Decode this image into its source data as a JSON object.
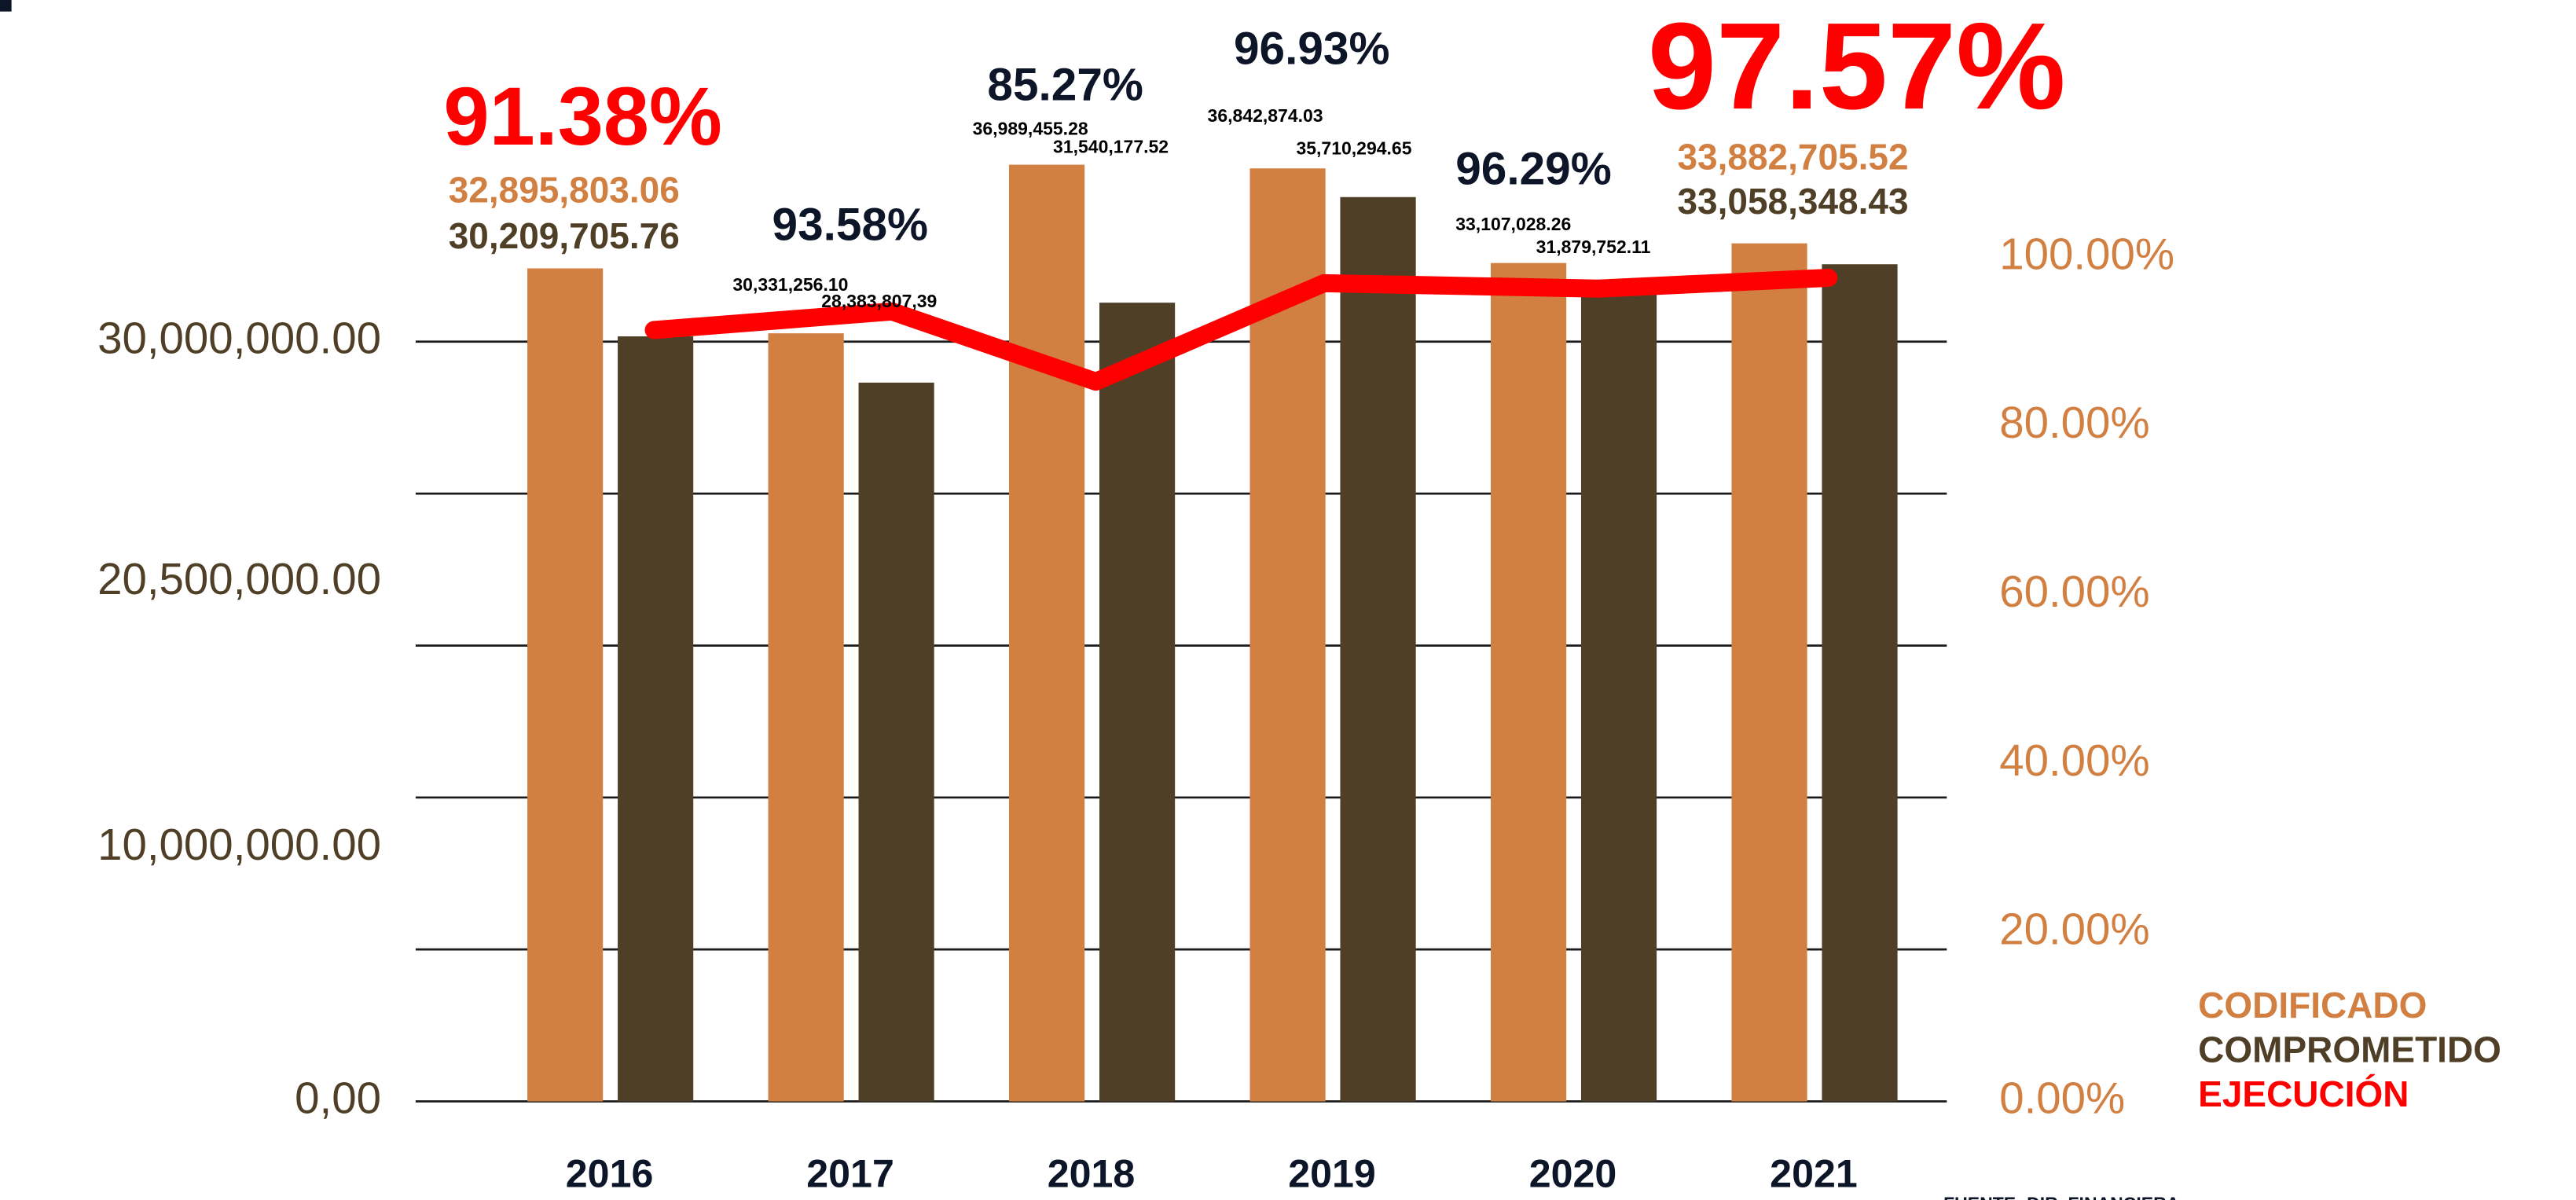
{
  "chart_data": {
    "type": "bar",
    "categories": [
      "2016",
      "2017",
      "2018",
      "2019",
      "2020",
      "2021"
    ],
    "series": [
      {
        "name": "CODIFICADO",
        "color": "#d27f42",
        "values": [
          32895803.06,
          30331256.1,
          36989455.28,
          36842874.03,
          33107028.26,
          33882705.52
        ],
        "value_labels": [
          "32,895,803.06",
          "30,331,256.10",
          "36,989,455.28",
          "36,842,874.03",
          "33,107,028.26",
          "33,882,705.52"
        ]
      },
      {
        "name": "COMPROMETIDO",
        "color": "#4f3f26",
        "values": [
          30209705.76,
          28383807.39,
          31540177.52,
          35710294.65,
          31879752.11,
          33058348.43
        ],
        "value_labels": [
          "30,209,705.76",
          "28,383,807,39",
          "31,540,177.52",
          "35,710,294.65",
          "31,879,752.11",
          "33,058,348.43"
        ]
      },
      {
        "name": "EJECUCIÓN",
        "color": "#ff0000",
        "type": "line",
        "axis": "y2",
        "values": [
          91.38,
          93.58,
          85.27,
          96.93,
          96.29,
          97.57
        ],
        "value_labels": [
          "91.38%",
          "93.58%",
          "85.27%",
          "96.93%",
          "96.29%",
          "97.57%"
        ]
      }
    ],
    "ylim": [
      0,
      42000000
    ],
    "yticks": [
      {
        "value": 0,
        "label": "0,00"
      },
      {
        "value": 10000000,
        "label": "10,000,000.00"
      },
      {
        "value": 20500000,
        "label": "20,500,000.00"
      },
      {
        "value": 30000000,
        "label": "30,000,000.00"
      }
    ],
    "ygrid": [
      0,
      6000000,
      12000000,
      18000000,
      24000000,
      30000000
    ],
    "y2lim": [
      0,
      126
    ],
    "y2ticks": [
      {
        "value": 0,
        "label": "0.00%"
      },
      {
        "value": 20,
        "label": "20.00%"
      },
      {
        "value": 40,
        "label": "40.00%"
      },
      {
        "value": 60,
        "label": "60.00%"
      },
      {
        "value": 80,
        "label": "80.00%"
      },
      {
        "value": 100,
        "label": "100.00%"
      }
    ],
    "grid": true,
    "legend": "lower right",
    "source": "FUENTE: DIR. FINANCIERA"
  }
}
